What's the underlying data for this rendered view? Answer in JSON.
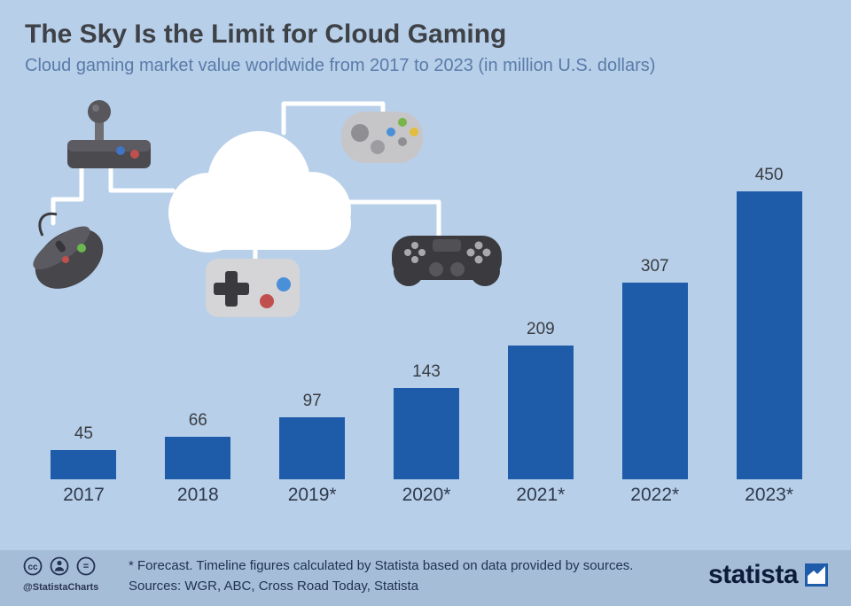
{
  "header": {
    "title": "The Sky Is the Limit for Cloud Gaming",
    "subtitle": "Cloud gaming market value worldwide from 2017 to 2023 (in million U.S. dollars)"
  },
  "chart_data": {
    "type": "bar",
    "categories": [
      "2017",
      "2018",
      "2019*",
      "2020*",
      "2021*",
      "2022*",
      "2023*"
    ],
    "values": [
      45,
      66,
      97,
      143,
      209,
      307,
      450
    ],
    "title": "The Sky Is the Limit for Cloud Gaming",
    "subtitle": "Cloud gaming market value worldwide from 2017 to 2023 (in million U.S. dollars)",
    "unit": "million U.S. dollars",
    "xlabel": "",
    "ylabel": "",
    "ylim": [
      0,
      450
    ],
    "grid": false,
    "legend": false,
    "value_labels_shown": true
  },
  "footer": {
    "note": "* Forecast. Timeline figures calculated by Statista based on data provided by sources.",
    "sources": "Sources: WGR, ABC, Cross Road Today, Statista",
    "handle": "@StatistaCharts",
    "logo_text": "statista"
  },
  "icons": {
    "license": [
      "cc-icon",
      "attribution-icon",
      "equals-icon"
    ],
    "illustrations": [
      "joystick-icon",
      "computer-mouse-icon",
      "cloud-icon",
      "xbox-gamepad-icon",
      "retro-gamepad-icon",
      "ps-gamepad-icon"
    ],
    "logo": "statista-logo-icon"
  },
  "colors": {
    "background": "#b7cfe9",
    "footer_band": "#a6bdd8",
    "bar": "#1e5ba9",
    "title_text": "#3e4146",
    "subtitle_text": "#5a7ba9",
    "year_label": "#2f3a4d",
    "footer_text": "#1e3150",
    "logo_navy": "#0d1c38"
  }
}
